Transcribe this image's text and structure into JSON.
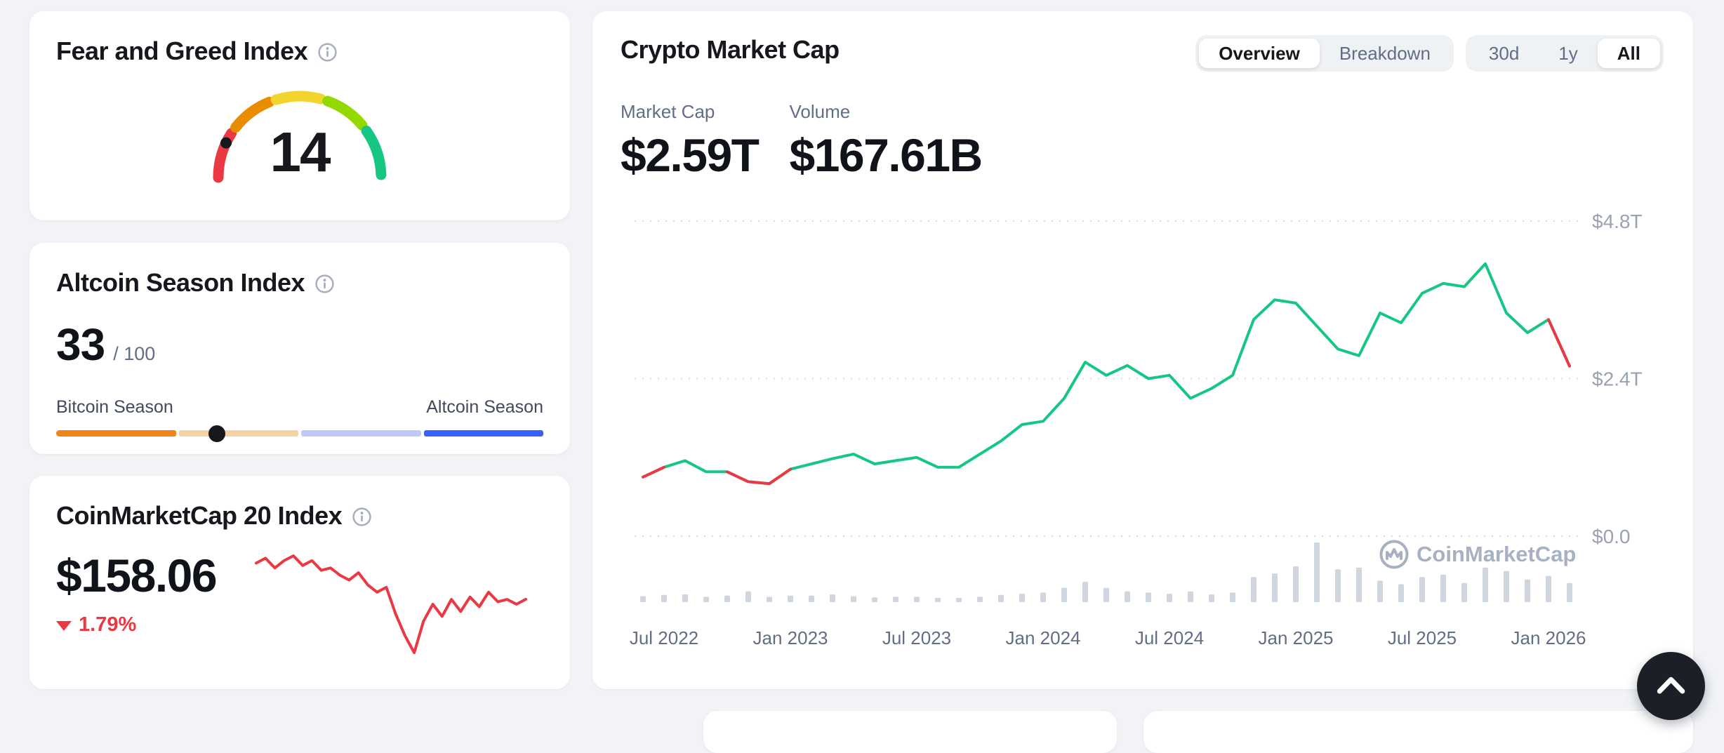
{
  "fear_greed": {
    "title": "Fear and Greed Index",
    "value": 14,
    "gauge_colors": [
      "#ea3943",
      "#ea8c00",
      "#f3d42f",
      "#93d900",
      "#16c784"
    ]
  },
  "altcoin_season": {
    "title": "Altcoin Season Index",
    "value": 33,
    "denominator": "/ 100",
    "left_label": "Bitcoin Season",
    "right_label": "Altcoin Season",
    "bar_colors": [
      "#f0851c",
      "#f6d2a3",
      "#bdc9f8",
      "#3861fb"
    ]
  },
  "cmc20": {
    "title": "CoinMarketCap 20 Index",
    "price": "$158.06",
    "change": "1.79%",
    "direction": "down"
  },
  "market_cap_card": {
    "title": "Crypto Market Cap",
    "view_tabs": [
      {
        "label": "Overview",
        "selected": true
      },
      {
        "label": "Breakdown",
        "selected": false
      }
    ],
    "range_tabs": [
      {
        "label": "30d",
        "selected": false
      },
      {
        "label": "1y",
        "selected": false
      },
      {
        "label": "All",
        "selected": true
      }
    ],
    "stats": [
      {
        "label": "Market Cap",
        "value": "$2.59T"
      },
      {
        "label": "Volume",
        "value": "$167.61B"
      }
    ],
    "watermark": "CoinMarketCap"
  },
  "colors": {
    "up": "#16c784",
    "down": "#ea3943",
    "accent_blue": "#3861fb"
  },
  "chart_data": [
    {
      "id": "crypto-market-cap",
      "type": "line",
      "title": "Crypto Market Cap (All time)",
      "x": [
        "Jun 2022",
        "Jul 2022",
        "Aug 2022",
        "Sep 2022",
        "Oct 2022",
        "Nov 2022",
        "Dec 2022",
        "Jan 2023",
        "Feb 2023",
        "Mar 2023",
        "Apr 2023",
        "May 2023",
        "Jun 2023",
        "Jul 2023",
        "Aug 2023",
        "Sep 2023",
        "Oct 2023",
        "Nov 2023",
        "Dec 2023",
        "Jan 2024",
        "Feb 2024",
        "Mar 2024",
        "Apr 2024",
        "May 2024",
        "Jun 2024",
        "Jul 2024",
        "Aug 2024",
        "Sep 2024",
        "Oct 2024",
        "Nov 2024",
        "Dec 2024",
        "Jan 2025",
        "Feb 2025",
        "Mar 2025",
        "Apr 2025",
        "May 2025",
        "Jun 2025",
        "Jul 2025",
        "Aug 2025",
        "Sep 2025",
        "Oct 2025",
        "Nov 2025",
        "Dec 2025",
        "Jan 2026",
        "Feb 2026"
      ],
      "series": [
        {
          "name": "Market Cap",
          "unit": "$T",
          "color": "#16c784",
          "values": [
            0.9,
            1.05,
            1.15,
            0.98,
            0.98,
            0.83,
            0.8,
            1.02,
            1.1,
            1.18,
            1.25,
            1.1,
            1.15,
            1.2,
            1.05,
            1.05,
            1.25,
            1.45,
            1.7,
            1.75,
            2.1,
            2.65,
            2.45,
            2.6,
            2.4,
            2.45,
            2.1,
            2.25,
            2.45,
            3.3,
            3.6,
            3.55,
            3.2,
            2.85,
            2.75,
            3.4,
            3.25,
            3.7,
            3.85,
            3.8,
            4.15,
            3.4,
            3.1,
            3.3,
            2.59
          ]
        }
      ],
      "decline_color": "#ea3943",
      "decline_segments": [
        [
          0,
          1
        ],
        [
          4,
          7
        ],
        [
          43,
          44
        ]
      ],
      "volume": {
        "name": "24h Volume",
        "bar_color": "#cfd6df",
        "relative_values": [
          0.1,
          0.12,
          0.13,
          0.09,
          0.11,
          0.18,
          0.09,
          0.11,
          0.11,
          0.13,
          0.1,
          0.08,
          0.09,
          0.09,
          0.07,
          0.07,
          0.09,
          0.12,
          0.14,
          0.16,
          0.24,
          0.34,
          0.24,
          0.18,
          0.16,
          0.14,
          0.18,
          0.13,
          0.16,
          0.42,
          0.48,
          0.6,
          1.0,
          0.55,
          0.58,
          0.36,
          0.3,
          0.42,
          0.46,
          0.32,
          0.58,
          0.52,
          0.38,
          0.44,
          0.32
        ]
      },
      "y_ticks": [
        {
          "label": "$4.8T",
          "value": 4.8
        },
        {
          "label": "$2.4T",
          "value": 2.4
        },
        {
          "label": "$0.0",
          "value": 0
        }
      ],
      "ylim": [
        0,
        4.8
      ],
      "x_ticks": [
        "Jul 2022",
        "Jan 2023",
        "Jul 2023",
        "Jan 2024",
        "Jul 2024",
        "Jan 2025",
        "Jul 2025",
        "Jan 2026"
      ],
      "grid": "dotted-horizontal",
      "legend": "none",
      "current_value_label": "$2.59T"
    },
    {
      "id": "cmc20-sparkline",
      "type": "line",
      "axes": "hidden",
      "series": [
        {
          "name": "CoinMarketCap 20 Index",
          "color": "#ea3943",
          "values": [
            173,
            175,
            171,
            174,
            176,
            172,
            174,
            170,
            171,
            168,
            166,
            169,
            164,
            161,
            163,
            152,
            143,
            136,
            149,
            156,
            151,
            158,
            153,
            159,
            155,
            161,
            157,
            158,
            156,
            158.06
          ]
        }
      ],
      "current_value": 158.06
    }
  ]
}
